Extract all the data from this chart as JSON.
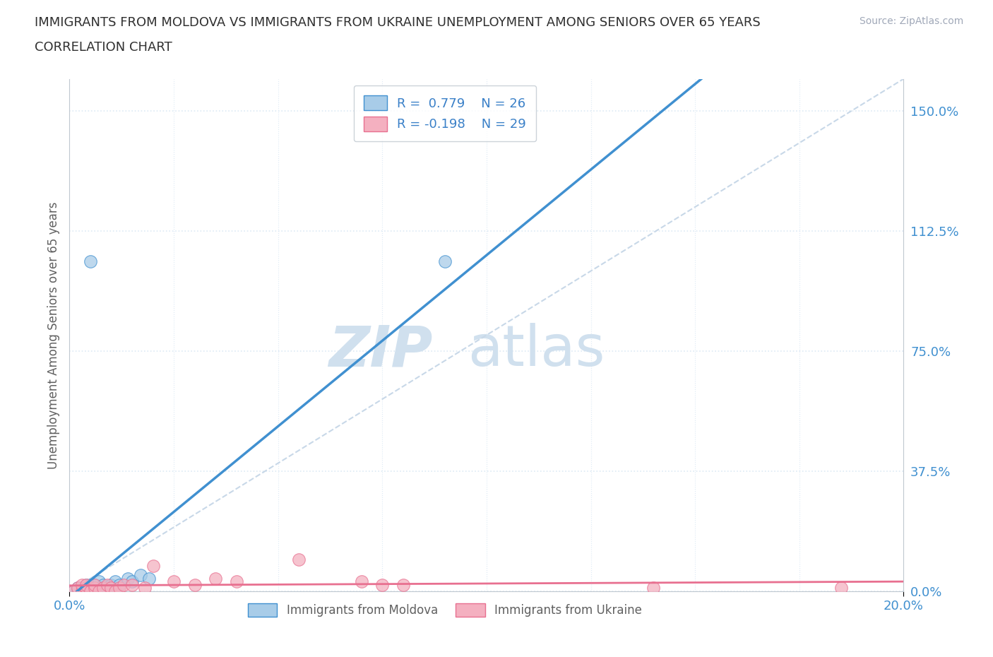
{
  "title_line1": "IMMIGRANTS FROM MOLDOVA VS IMMIGRANTS FROM UKRAINE UNEMPLOYMENT AMONG SENIORS OVER 65 YEARS",
  "title_line2": "CORRELATION CHART",
  "source_text": "Source: ZipAtlas.com",
  "xlim": [
    0.0,
    0.2
  ],
  "ylim": [
    0.0,
    1.6
  ],
  "moldova_color": "#a8cce8",
  "ukraine_color": "#f4b0c0",
  "moldova_line_color": "#4090d0",
  "ukraine_line_color": "#e87090",
  "ref_line_color": "#c8d8e8",
  "watermark_color": "#d0e0ee",
  "legend_moldova_R": "0.779",
  "legend_moldova_N": "26",
  "legend_ukraine_R": "-0.198",
  "legend_ukraine_N": "29",
  "moldova_scatter_x": [
    0.001,
    0.002,
    0.002,
    0.003,
    0.003,
    0.004,
    0.004,
    0.005,
    0.005,
    0.005,
    0.006,
    0.006,
    0.007,
    0.007,
    0.008,
    0.008,
    0.009,
    0.01,
    0.011,
    0.012,
    0.014,
    0.015,
    0.017,
    0.019,
    0.005,
    0.09
  ],
  "moldova_scatter_y": [
    0.0,
    0.0,
    0.01,
    0.0,
    0.01,
    0.0,
    0.02,
    0.0,
    0.01,
    0.02,
    0.01,
    0.02,
    0.01,
    0.03,
    0.01,
    0.02,
    0.01,
    0.02,
    0.03,
    0.02,
    0.04,
    0.03,
    0.05,
    0.04,
    1.03,
    1.03
  ],
  "ukraine_scatter_x": [
    0.001,
    0.002,
    0.003,
    0.003,
    0.004,
    0.004,
    0.005,
    0.006,
    0.006,
    0.007,
    0.008,
    0.009,
    0.01,
    0.011,
    0.012,
    0.013,
    0.015,
    0.018,
    0.02,
    0.025,
    0.03,
    0.035,
    0.04,
    0.055,
    0.07,
    0.075,
    0.08,
    0.14,
    0.185
  ],
  "ukraine_scatter_y": [
    0.0,
    0.01,
    0.0,
    0.02,
    0.01,
    0.02,
    0.0,
    0.01,
    0.02,
    0.0,
    0.01,
    0.02,
    0.01,
    0.0,
    0.01,
    0.02,
    0.02,
    0.01,
    0.08,
    0.03,
    0.02,
    0.04,
    0.03,
    0.1,
    0.03,
    0.02,
    0.02,
    0.01,
    0.01
  ],
  "background_color": "#ffffff",
  "plot_bg_color": "#ffffff",
  "grid_color": "#ddeaf5",
  "title_color": "#303030",
  "axis_label_color": "#4090d0",
  "legend_text_color": "#3a80c8",
  "ylabel_ticks": [
    0.0,
    0.375,
    0.75,
    1.125,
    1.5
  ],
  "ylabel_labels": [
    "0.0%",
    "37.5%",
    "75.0%",
    "112.5%",
    "150.0%"
  ],
  "xtick_major": [
    0.0,
    0.2
  ],
  "xtick_minor": [
    0.025,
    0.05,
    0.075,
    0.1,
    0.125,
    0.15,
    0.175
  ]
}
